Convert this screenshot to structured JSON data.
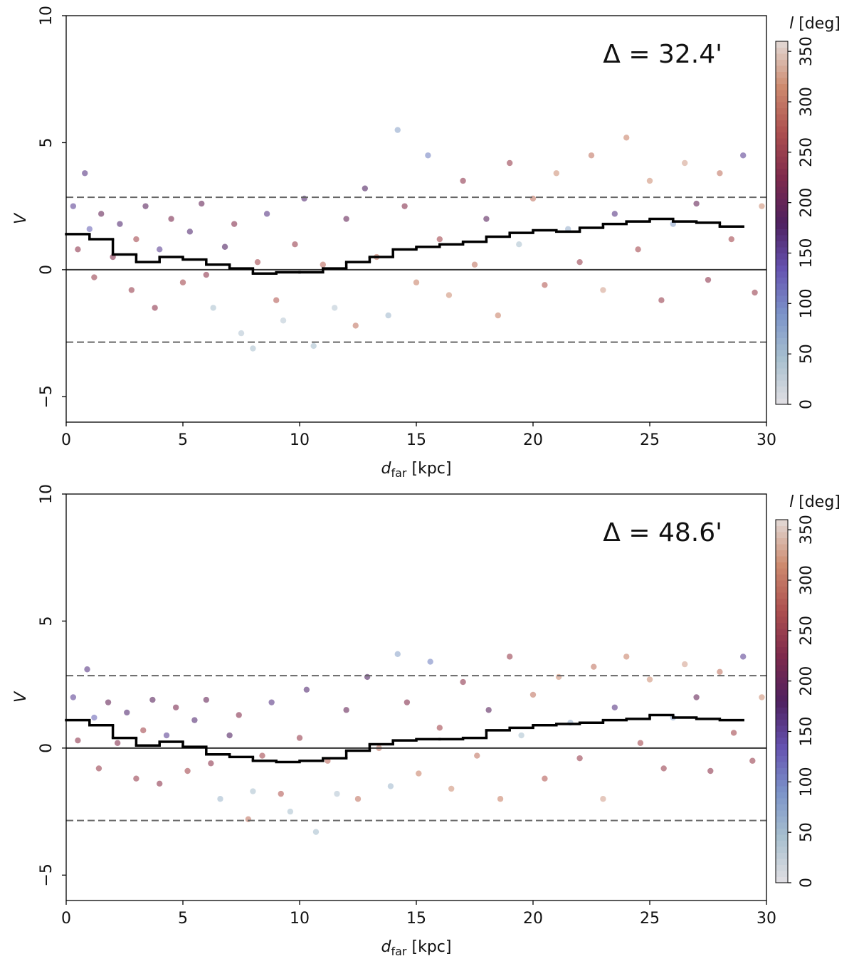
{
  "chart_data": [
    {
      "type": "scatter",
      "annotation": "Δ = 32.4'",
      "xlabel": [
        "d",
        "far",
        "[kpc]"
      ],
      "ylabel": "V",
      "colorbar_label": [
        "l",
        "[deg]"
      ],
      "xlim": [
        0,
        30
      ],
      "xticks": [
        0,
        5,
        10,
        15,
        20,
        25,
        30
      ],
      "ylim": [
        -6,
        10
      ],
      "yticks": [
        {
          "value": -5,
          "label": "−5"
        },
        0,
        5,
        10
      ],
      "clim": [
        0,
        360
      ],
      "cticks": [
        0,
        50,
        100,
        150,
        200,
        250,
        300,
        350
      ],
      "cmap": [
        "#e2dfe3",
        "#a8c0cf",
        "#7b93c9",
        "#6552b0",
        "#4f2160",
        "#7e2a4c",
        "#ad4f4f",
        "#cd8a6e",
        "#e2d9d6"
      ],
      "hlines": [
        {
          "value": 2.85,
          "style": "dashed"
        },
        {
          "value": 0,
          "style": "solid"
        },
        {
          "value": -2.85,
          "style": "dashed"
        }
      ],
      "x": [
        0.3,
        0.5,
        0.8,
        1,
        1.2,
        1.5,
        2,
        2.3,
        2.8,
        3,
        3.4,
        3.8,
        4,
        4.5,
        5,
        5.3,
        5.8,
        6,
        6.3,
        6.8,
        7.2,
        7.5,
        8,
        8.2,
        8.6,
        9,
        9.3,
        9.8,
        10.2,
        10.6,
        11,
        11.5,
        12,
        12.4,
        12.8,
        13.3,
        13.8,
        14.2,
        14.5,
        15,
        15.5,
        16,
        16.4,
        17,
        17.5,
        18,
        18.5,
        19,
        19.4,
        20,
        20.5,
        21,
        21.5,
        22,
        22.5,
        23,
        23.5,
        24,
        24.5,
        25,
        25.5,
        26,
        26.5,
        27,
        27.5,
        28,
        28.5,
        29,
        29.5,
        29.8
      ],
      "values": [
        2.5,
        0.8,
        3.8,
        1.6,
        -0.3,
        2.2,
        0.5,
        1.8,
        -0.8,
        1.2,
        2.5,
        -1.5,
        0.8,
        2.0,
        -0.5,
        1.5,
        2.6,
        -0.2,
        -1.5,
        0.9,
        1.8,
        -2.5,
        -3.1,
        0.3,
        2.2,
        -1.2,
        -2.0,
        1.0,
        2.8,
        -3.0,
        0.2,
        -1.5,
        2.0,
        -2.2,
        3.2,
        0.5,
        -1.8,
        5.5,
        2.5,
        -0.5,
        4.5,
        1.2,
        -1.0,
        3.5,
        0.2,
        2.0,
        -1.8,
        4.2,
        1.0,
        2.8,
        -0.6,
        3.8,
        1.6,
        0.3,
        4.5,
        -0.8,
        2.2,
        5.2,
        0.8,
        3.5,
        -1.2,
        1.8,
        4.2,
        2.6,
        -0.4,
        3.8,
        1.2,
        4.5,
        -0.9,
        2.5
      ],
      "c": [
        150,
        240,
        160,
        120,
        250,
        200,
        230,
        170,
        250,
        260,
        190,
        240,
        150,
        220,
        260,
        170,
        200,
        240,
        40,
        180,
        230,
        35,
        40,
        260,
        160,
        280,
        30,
        250,
        170,
        45,
        290,
        30,
        200,
        300,
        180,
        300,
        50,
        70,
        230,
        310,
        100,
        260,
        320,
        240,
        300,
        190,
        310,
        250,
        40,
        300,
        280,
        320,
        60,
        250,
        300,
        330,
        160,
        310,
        260,
        320,
        250,
        70,
        330,
        200,
        240,
        300,
        260,
        150,
        250,
        320
      ],
      "step": {
        "bins": [
          0,
          1,
          2,
          3,
          4,
          5,
          6,
          7,
          8,
          9,
          10,
          11,
          12,
          13,
          14,
          15,
          16,
          17,
          18,
          19,
          20,
          21,
          22,
          23,
          24,
          25,
          26,
          27,
          28,
          29
        ],
        "values": [
          1.4,
          1.2,
          0.6,
          0.3,
          0.5,
          0.4,
          0.2,
          0.05,
          -0.15,
          -0.1,
          -0.1,
          0.05,
          0.3,
          0.5,
          0.8,
          0.9,
          1.0,
          1.1,
          1.3,
          1.45,
          1.55,
          1.5,
          1.65,
          1.8,
          1.9,
          2.0,
          1.9,
          1.85,
          1.7
        ]
      }
    },
    {
      "type": "scatter",
      "annotation": "Δ = 48.6'",
      "xlabel": [
        "d",
        "far",
        "[kpc]"
      ],
      "ylabel": "V",
      "colorbar_label": [
        "l",
        "[deg]"
      ],
      "xlim": [
        0,
        30
      ],
      "xticks": [
        0,
        5,
        10,
        15,
        20,
        25,
        30
      ],
      "ylim": [
        -6,
        10
      ],
      "yticks": [
        {
          "value": -5,
          "label": "−5"
        },
        0,
        5,
        10
      ],
      "clim": [
        0,
        360
      ],
      "cticks": [
        0,
        50,
        100,
        150,
        200,
        250,
        300,
        350
      ],
      "cmap": [
        "#e2dfe3",
        "#a8c0cf",
        "#7b93c9",
        "#6552b0",
        "#4f2160",
        "#7e2a4c",
        "#ad4f4f",
        "#cd8a6e",
        "#e2d9d6"
      ],
      "hlines": [
        {
          "value": 2.85,
          "style": "dashed"
        },
        {
          "value": 0,
          "style": "solid"
        },
        {
          "value": -2.85,
          "style": "dashed"
        }
      ],
      "x": [
        0.3,
        0.5,
        0.9,
        1.2,
        1.4,
        1.8,
        2.2,
        2.6,
        3,
        3.3,
        3.7,
        4,
        4.3,
        4.7,
        5.2,
        5.5,
        6,
        6.2,
        6.6,
        7,
        7.4,
        7.8,
        8,
        8.4,
        8.8,
        9.2,
        9.6,
        10,
        10.3,
        10.7,
        11.2,
        11.6,
        12,
        12.5,
        12.9,
        13.4,
        13.9,
        14.2,
        14.6,
        15.1,
        15.6,
        16,
        16.5,
        17,
        17.6,
        18.1,
        18.6,
        19,
        19.5,
        20,
        20.5,
        21.1,
        21.6,
        22,
        22.6,
        23,
        23.5,
        24,
        24.6,
        25,
        25.6,
        26,
        26.5,
        27,
        27.6,
        28,
        28.6,
        29,
        29.4,
        29.8
      ],
      "values": [
        2.0,
        0.3,
        3.1,
        1.2,
        -0.8,
        1.8,
        0.2,
        1.4,
        -1.2,
        0.7,
        1.9,
        -1.4,
        0.5,
        1.6,
        -0.9,
        1.1,
        1.9,
        -0.6,
        -2.0,
        0.5,
        1.3,
        -2.8,
        -1.7,
        -0.3,
        1.8,
        -1.8,
        -2.5,
        0.4,
        2.3,
        -3.3,
        -0.5,
        -1.8,
        1.5,
        -2.0,
        2.8,
        0.0,
        -1.5,
        3.7,
        1.8,
        -1.0,
        3.4,
        0.8,
        -1.6,
        2.6,
        -0.3,
        1.5,
        -2.0,
        3.6,
        0.5,
        2.1,
        -1.2,
        2.8,
        1.0,
        -0.4,
        3.2,
        -2.0,
        1.6,
        3.6,
        0.2,
        2.7,
        -0.8,
        1.2,
        3.3,
        2.0,
        -0.9,
        3.0,
        0.6,
        3.6,
        -0.5,
        2.0
      ],
      "c": [
        150,
        240,
        160,
        120,
        250,
        200,
        230,
        170,
        250,
        260,
        190,
        240,
        150,
        220,
        260,
        170,
        200,
        240,
        50,
        180,
        230,
        300,
        40,
        260,
        160,
        280,
        40,
        250,
        170,
        45,
        290,
        35,
        200,
        300,
        180,
        300,
        50,
        70,
        230,
        310,
        100,
        260,
        320,
        240,
        300,
        190,
        310,
        250,
        40,
        300,
        280,
        320,
        60,
        250,
        300,
        330,
        160,
        310,
        260,
        320,
        250,
        70,
        330,
        200,
        240,
        300,
        260,
        150,
        250,
        320
      ],
      "step": {
        "bins": [
          0,
          1,
          2,
          3,
          4,
          5,
          6,
          7,
          8,
          9,
          10,
          11,
          12,
          13,
          14,
          15,
          16,
          17,
          18,
          19,
          20,
          21,
          22,
          23,
          24,
          25,
          26,
          27,
          28,
          29
        ],
        "values": [
          1.1,
          0.9,
          0.4,
          0.1,
          0.25,
          0.05,
          -0.25,
          -0.35,
          -0.5,
          -0.55,
          -0.5,
          -0.4,
          -0.1,
          0.15,
          0.3,
          0.35,
          0.35,
          0.4,
          0.7,
          0.8,
          0.9,
          0.95,
          1.0,
          1.1,
          1.15,
          1.3,
          1.2,
          1.15,
          1.1
        ]
      }
    }
  ]
}
